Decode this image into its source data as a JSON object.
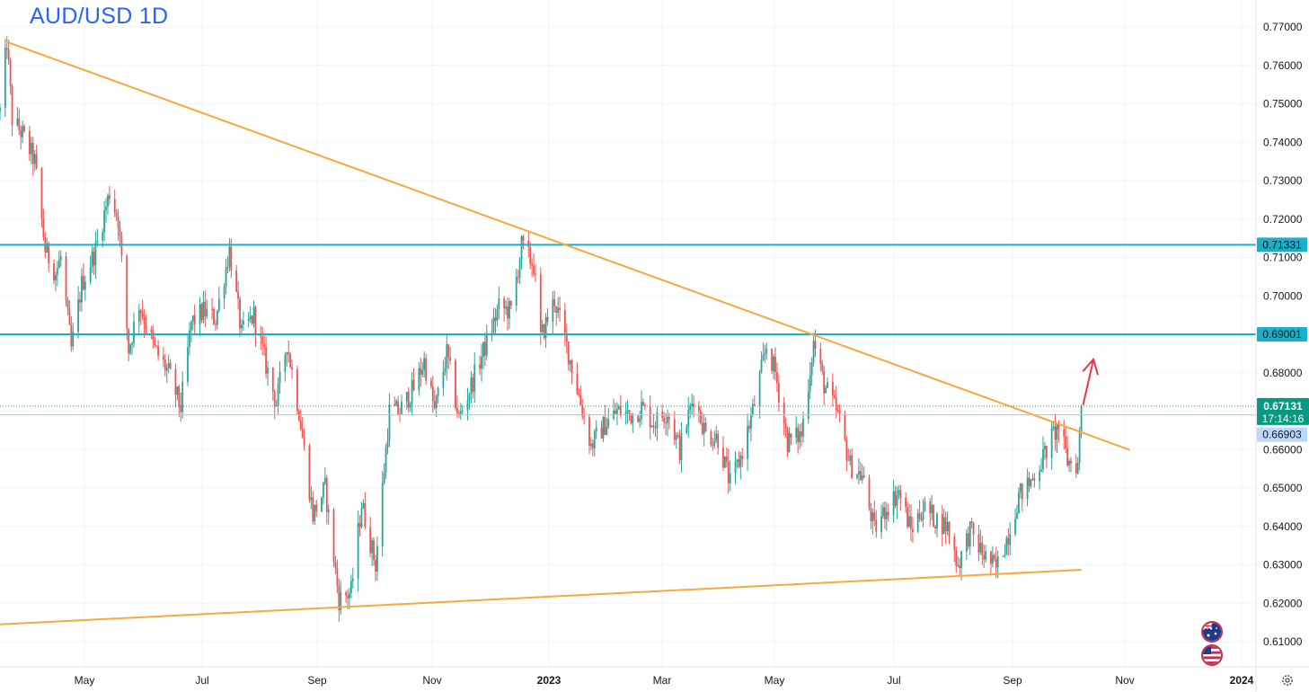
{
  "chart_data": {
    "type": "candlestick",
    "title": "AUD/USD 1D",
    "symbol": "AUD/USD",
    "interval": "1D",
    "ylim": [
      0.6045,
      0.7745
    ],
    "y_ticks": [
      "0.77000",
      "0.76000",
      "0.75000",
      "0.74000",
      "0.73000",
      "0.72000",
      "0.71000",
      "0.70000",
      "0.69000",
      "0.68000",
      "0.67000",
      "0.66000",
      "0.65000",
      "0.64000",
      "0.63000",
      "0.62000",
      "0.61000"
    ],
    "x_ticks": [
      "May",
      "Jul",
      "Sep",
      "Nov",
      "2023",
      "Mar",
      "May",
      "Jul",
      "Sep",
      "Nov",
      "2024"
    ],
    "x_range": [
      "2022-04-01",
      "2024-01-11"
    ],
    "grid": true,
    "colors": {
      "up": "#26a69a",
      "down": "#ef5350",
      "trendline": "#f7a93b",
      "level": "#17b1c9",
      "arrow": "#e53945",
      "price_badge": "#089981",
      "prev_close_badge": "#bbd8f8",
      "title": "#2962ff"
    },
    "price_path": [
      [
        "2022-04-01",
        0.748
      ],
      [
        "2022-04-05",
        0.7661
      ],
      [
        "2022-04-08",
        0.746
      ],
      [
        "2022-04-14",
        0.742
      ],
      [
        "2022-04-21",
        0.735
      ],
      [
        "2022-04-27",
        0.712
      ],
      [
        "2022-05-03",
        0.706
      ],
      [
        "2022-05-06",
        0.71
      ],
      [
        "2022-05-12",
        0.686
      ],
      [
        "2022-05-18",
        0.703
      ],
      [
        "2022-05-26",
        0.712
      ],
      [
        "2022-06-03",
        0.727
      ],
      [
        "2022-06-08",
        0.72
      ],
      [
        "2022-06-14",
        0.686
      ],
      [
        "2022-06-20",
        0.698
      ],
      [
        "2022-06-29",
        0.686
      ],
      [
        "2022-07-07",
        0.68
      ],
      [
        "2022-07-14",
        0.671
      ],
      [
        "2022-07-20",
        0.693
      ],
      [
        "2022-07-27",
        0.696
      ],
      [
        "2022-08-03",
        0.694
      ],
      [
        "2022-08-11",
        0.712
      ],
      [
        "2022-08-18",
        0.69
      ],
      [
        "2022-08-25",
        0.695
      ],
      [
        "2022-09-01",
        0.682
      ],
      [
        "2022-09-07",
        0.672
      ],
      [
        "2022-09-13",
        0.688
      ],
      [
        "2022-09-20",
        0.67
      ],
      [
        "2022-09-28",
        0.643
      ],
      [
        "2022-10-05",
        0.65
      ],
      [
        "2022-10-13",
        0.621
      ],
      [
        "2022-10-20",
        0.623
      ],
      [
        "2022-10-26",
        0.646
      ],
      [
        "2022-11-03",
        0.63
      ],
      [
        "2022-11-11",
        0.67
      ],
      [
        "2022-11-17",
        0.67
      ],
      [
        "2022-11-25",
        0.676
      ],
      [
        "2022-12-01",
        0.683
      ],
      [
        "2022-12-07",
        0.67
      ],
      [
        "2022-12-14",
        0.685
      ],
      [
        "2022-12-21",
        0.668
      ],
      [
        "2022-12-29",
        0.678
      ],
      [
        "2023-01-06",
        0.688
      ],
      [
        "2023-01-13",
        0.697
      ],
      [
        "2023-01-20",
        0.696
      ],
      [
        "2023-01-26",
        0.713
      ],
      [
        "2023-02-02",
        0.708
      ],
      [
        "2023-02-06",
        0.689
      ],
      [
        "2023-02-14",
        0.699
      ],
      [
        "2023-02-21",
        0.687
      ],
      [
        "2023-02-28",
        0.674
      ],
      [
        "2023-03-07",
        0.661
      ],
      [
        "2023-03-14",
        0.666
      ],
      [
        "2023-03-22",
        0.67
      ],
      [
        "2023-03-31",
        0.669
      ],
      [
        "2023-04-05",
        0.671
      ],
      [
        "2023-04-12",
        0.667
      ],
      [
        "2023-04-20",
        0.67
      ],
      [
        "2023-04-27",
        0.66
      ],
      [
        "2023-05-05",
        0.674
      ],
      [
        "2023-05-12",
        0.664
      ],
      [
        "2023-05-19",
        0.663
      ],
      [
        "2023-05-26",
        0.651
      ],
      [
        "2023-06-01",
        0.658
      ],
      [
        "2023-06-08",
        0.67
      ],
      [
        "2023-06-16",
        0.687
      ],
      [
        "2023-06-21",
        0.68
      ],
      [
        "2023-06-28",
        0.662
      ],
      [
        "2023-07-06",
        0.664
      ],
      [
        "2023-07-13",
        0.688
      ],
      [
        "2023-07-19",
        0.677
      ],
      [
        "2023-07-27",
        0.669
      ],
      [
        "2023-08-03",
        0.656
      ],
      [
        "2023-08-10",
        0.653
      ],
      [
        "2023-08-17",
        0.639
      ],
      [
        "2023-08-24",
        0.645
      ],
      [
        "2023-08-31",
        0.649
      ],
      [
        "2023-09-07",
        0.639
      ],
      [
        "2023-09-14",
        0.645
      ],
      [
        "2023-09-21",
        0.642
      ],
      [
        "2023-09-28",
        0.64
      ],
      [
        "2023-10-04",
        0.63
      ],
      [
        "2023-10-11",
        0.639
      ],
      [
        "2023-10-18",
        0.633
      ],
      [
        "2023-10-26",
        0.629
      ],
      [
        "2023-11-02",
        0.638
      ],
      [
        "2023-11-08",
        0.648
      ],
      [
        "2023-11-14",
        0.651
      ],
      [
        "2023-11-21",
        0.657
      ],
      [
        "2023-11-28",
        0.664
      ],
      [
        "2023-12-01",
        0.666
      ],
      [
        "2023-12-06",
        0.657
      ],
      [
        "2023-12-12",
        0.656
      ],
      [
        "2023-12-14",
        0.6713
      ]
    ],
    "trendlines": [
      {
        "name": "descending resistance",
        "from": [
          "2022-04-05",
          0.7661
        ],
        "to": [
          "2024-01-11",
          0.6599
        ]
      },
      {
        "name": "ascending support",
        "from": [
          "2022-04-01",
          0.6145
        ],
        "to": [
          "2023-12-14",
          0.6287
        ]
      }
    ],
    "levels": [
      {
        "price": 0.71331,
        "label": "0.71331"
      },
      {
        "price": 0.69001,
        "label": "0.69001"
      }
    ],
    "last_price": {
      "price": 0.67131,
      "label": "0.67131",
      "countdown": "17:14:16"
    },
    "prev_close": {
      "price": 0.66903,
      "label": "0.66903"
    },
    "arrow": {
      "from": [
        "2023-12-15",
        0.6716
      ],
      "to": [
        "2023-12-21",
        0.6835
      ]
    }
  }
}
